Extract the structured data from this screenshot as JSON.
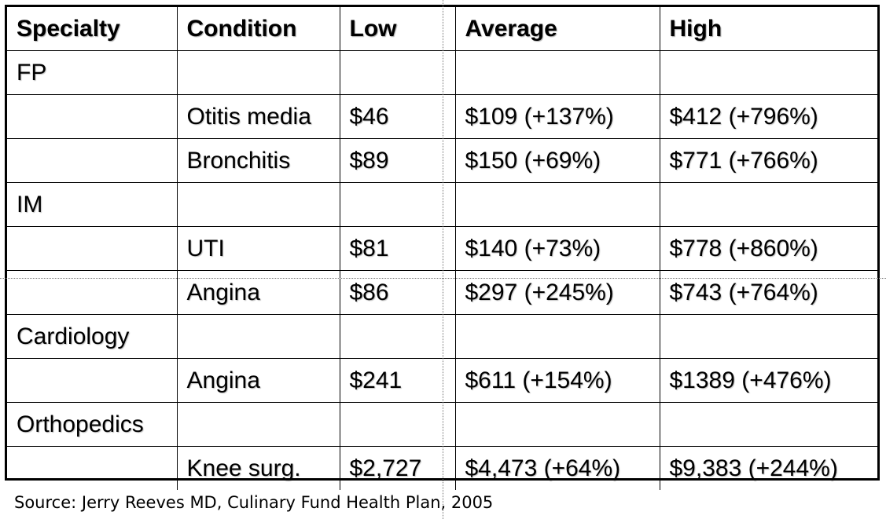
{
  "table": {
    "headers": [
      "Specialty",
      "Condition",
      "Low",
      "Average",
      "High"
    ],
    "rows": [
      [
        "FP",
        "",
        "",
        "",
        ""
      ],
      [
        "",
        "Otitis media",
        "$46",
        "$109 (+137%)",
        "$412 (+796%)"
      ],
      [
        "",
        "Bronchitis",
        "$89",
        "$150 (+69%)",
        "$771 (+766%)"
      ],
      [
        "IM",
        "",
        "",
        "",
        ""
      ],
      [
        "",
        "UTI",
        "$81",
        "$140 (+73%)",
        "$778 (+860%)"
      ],
      [
        "",
        "Angina",
        "$86",
        "$297 (+245%)",
        "$743 (+764%)"
      ],
      [
        "Cardiology",
        "",
        "",
        "",
        ""
      ],
      [
        "",
        "Angina",
        "$241",
        "$611 (+154%)",
        "$1389 (+476%)"
      ],
      [
        "Orthopedics",
        "",
        "",
        "",
        ""
      ],
      [
        "",
        "Knee surg.",
        "$2,727",
        "$4,473 (+64%)",
        "$9,383 (+244%)"
      ]
    ]
  },
  "source": "Source: Jerry Reeves MD, Culinary Fund Health Plan, 2005"
}
